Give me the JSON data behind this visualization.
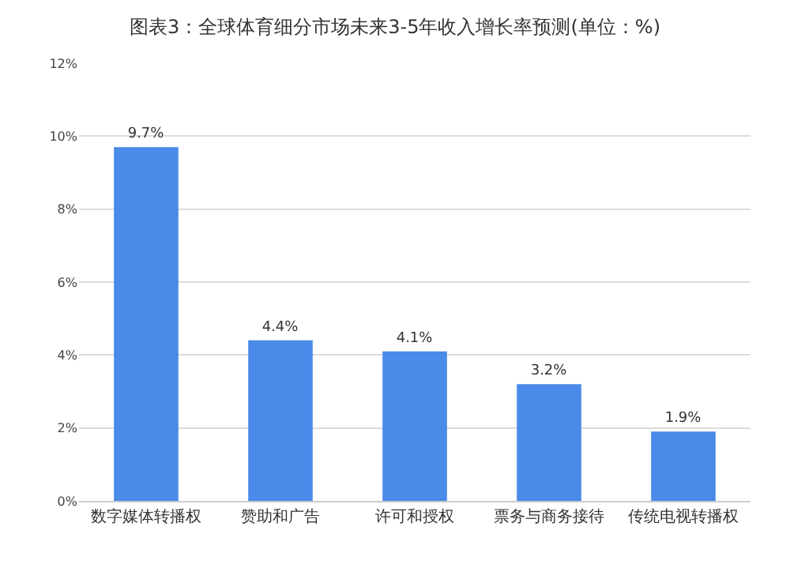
{
  "chart_data": {
    "type": "bar",
    "title": "图表3：全球体育细分市场未来3-5年收入增长率预测(单位：%)",
    "categories": [
      "数字媒体转播权",
      "赞助和广告",
      "许可和授权",
      "票务与商务接待",
      "传统电视转播权"
    ],
    "values": [
      9.7,
      4.4,
      4.1,
      3.2,
      1.9
    ],
    "value_labels": [
      "9.7%",
      "4.4%",
      "4.1%",
      "3.2%",
      "1.9%"
    ],
    "color": "#4a8ae8",
    "ylim": [
      0,
      12
    ],
    "yticks": [
      {
        "value": 0,
        "label": "0%"
      },
      {
        "value": 2,
        "label": "2%"
      },
      {
        "value": 4,
        "label": "4%"
      },
      {
        "value": 6,
        "label": "6%"
      },
      {
        "value": 8,
        "label": "8%"
      },
      {
        "value": 10,
        "label": "10%"
      },
      {
        "value": 12,
        "label": "12%"
      }
    ],
    "grid": "y"
  }
}
